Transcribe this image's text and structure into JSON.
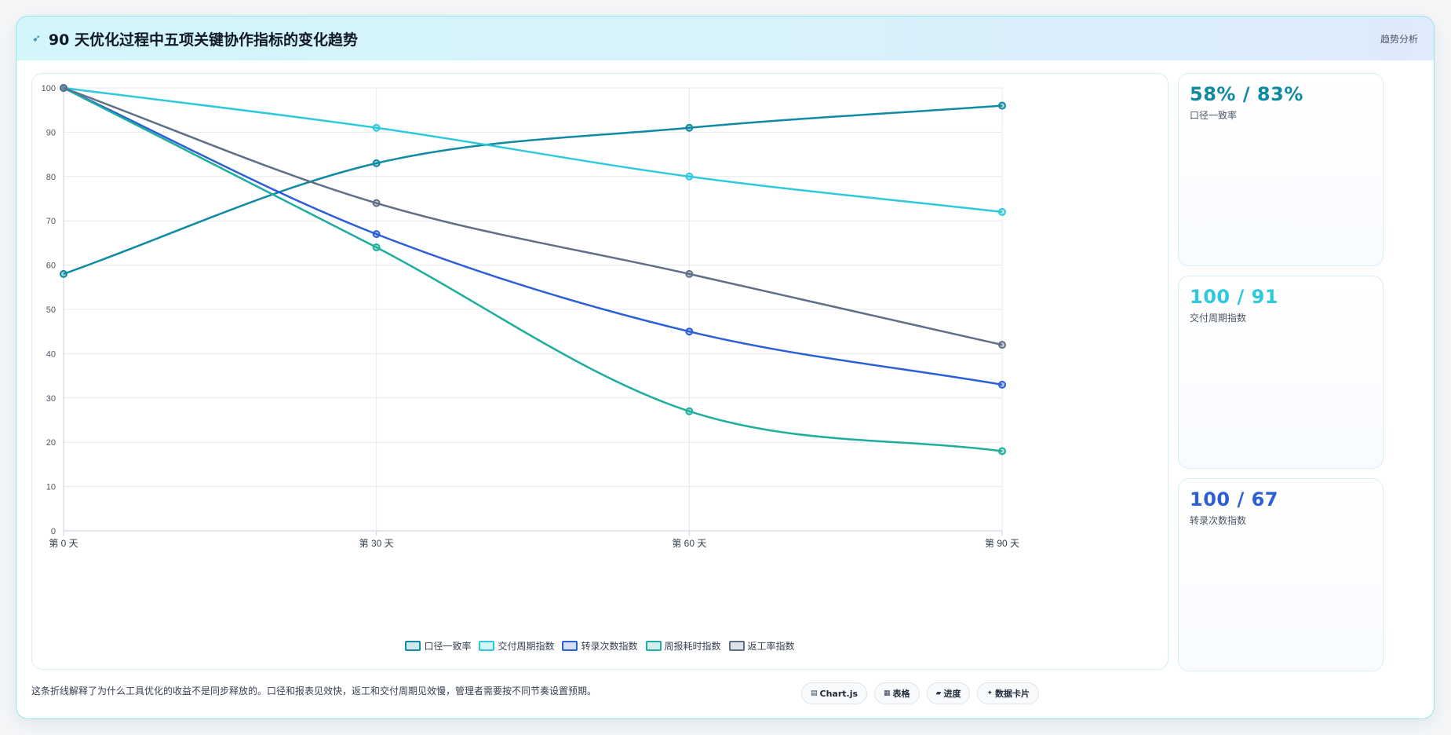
{
  "header": {
    "title": "90 天优化过程中五项关键协作指标的变化趋势",
    "icon": "leaf-icon",
    "tag": "趋势分析"
  },
  "chart_data": {
    "type": "line",
    "categories": [
      "第 0 天",
      "第 30 天",
      "第 60 天",
      "第 90 天"
    ],
    "ylim": [
      0,
      100
    ],
    "yticks": [
      0,
      10,
      20,
      30,
      40,
      50,
      60,
      70,
      80,
      90,
      100
    ],
    "grid": true,
    "legend": "bottom",
    "series": [
      {
        "name": "口径一致率",
        "color": "#0e8aa3",
        "values": [
          58,
          83,
          91,
          96
        ]
      },
      {
        "name": "交付周期指数",
        "color": "#2ec9dc",
        "values": [
          100,
          91,
          80,
          72
        ]
      },
      {
        "name": "转录次数指数",
        "color": "#2a5fd8",
        "values": [
          100,
          67,
          45,
          33
        ]
      },
      {
        "name": "周报耗时指数",
        "color": "#1fae9e",
        "values": [
          100,
          64,
          27,
          18
        ]
      },
      {
        "name": "返工率指数",
        "color": "#5f6f88",
        "values": [
          100,
          74,
          58,
          42
        ]
      }
    ]
  },
  "stats": [
    {
      "value": "58% / 83%",
      "label": "口径一致率",
      "color": "#0e8aa3"
    },
    {
      "value": "100 / 91",
      "label": "交付周期指数",
      "color": "#2ec9dc"
    },
    {
      "value": "100 / 67",
      "label": "转录次数指数",
      "color": "#2a5fd8"
    }
  ],
  "footer": {
    "note": "这条折线解释了为什么工具优化的收益不是同步释放的。口径和报表见效快，返工和交付周期见效慢，管理者需要按不同节奏设置预期。"
  },
  "chips": [
    {
      "label": "Chart.js",
      "icon": "chart-icon",
      "glyph": "▤"
    },
    {
      "label": "表格",
      "icon": "table-icon",
      "glyph": "▦"
    },
    {
      "label": "进度",
      "icon": "progress-icon",
      "glyph": "▰"
    },
    {
      "label": "数据卡片",
      "icon": "card-icon",
      "glyph": "✦"
    }
  ]
}
